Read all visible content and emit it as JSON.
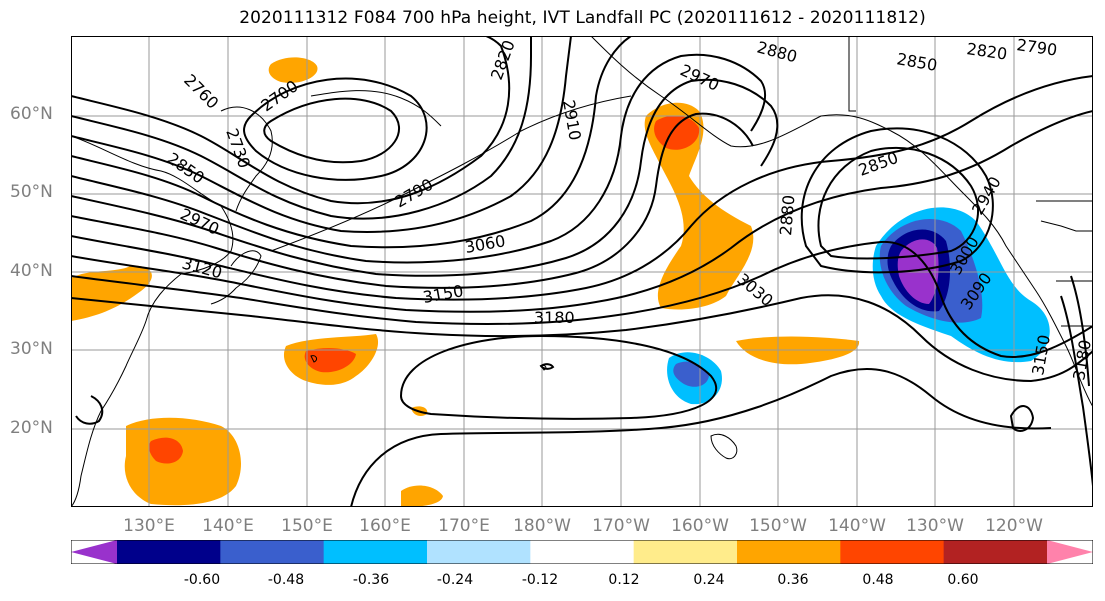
{
  "title": "2020111312 F084 700 hPa height, IVT Landfall PC (2020111612 - 2020111812)",
  "lat_labels": [
    "60°N",
    "50°N",
    "40°N",
    "30°N",
    "20°N"
  ],
  "lon_labels": [
    "130°E",
    "140°E",
    "150°E",
    "160°E",
    "170°E",
    "180°W",
    "170°W",
    "160°W",
    "150°W",
    "140°W",
    "130°W",
    "120°W"
  ],
  "colorbar": {
    "tick_labels": [
      "-0.60",
      "-0.48",
      "-0.36",
      "-0.24",
      "-0.12",
      "0.12",
      "0.24",
      "0.36",
      "0.48",
      "0.60"
    ],
    "colors": [
      "#9932cc",
      "#00008b",
      "#3a5fcd",
      "#00bfff",
      "#b0e2ff",
      "#ffffff",
      "#ffec8b",
      "#ffa500",
      "#ff4500",
      "#b22222",
      "#ff82ab"
    ]
  },
  "contour_labels": [
    "2760",
    "2700",
    "2730",
    "2850",
    "2970",
    "3120",
    "2790",
    "2820",
    "2910",
    "2970",
    "2880",
    "2850",
    "2820",
    "2790",
    "3060",
    "3150",
    "3180",
    "3030",
    "2880",
    "2850",
    "2940",
    "3000",
    "3090",
    "3150",
    "3180"
  ],
  "chart_data": {
    "type": "map",
    "title": "2020111312 F084 700 hPa height, IVT Landfall PC (2020111612 - 2020111812)",
    "field_contours": "700 hPa height",
    "field_shaded": "IVT Landfall PC",
    "contour_levels": [
      2700,
      2730,
      2760,
      2790,
      2820,
      2850,
      2880,
      2910,
      2940,
      2970,
      3000,
      3030,
      3060,
      3090,
      3120,
      3150,
      3180
    ],
    "shading_levels": [
      -0.6,
      -0.48,
      -0.36,
      -0.24,
      -0.12,
      0.12,
      0.24,
      0.36,
      0.48,
      0.6
    ],
    "lat_range": [
      10,
      70
    ],
    "lon_range": [
      120,
      250
    ],
    "grid": true
  }
}
